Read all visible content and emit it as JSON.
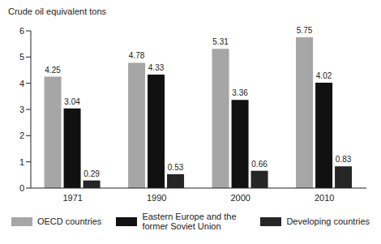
{
  "chart_data": {
    "type": "bar",
    "y_label": "Crude oil equivalent tons",
    "categories": [
      "1971",
      "1990",
      "2000",
      "2010"
    ],
    "series": [
      {
        "name": "OECD countries",
        "color": "#a6a6a6",
        "values": [
          4.25,
          4.78,
          5.31,
          5.75
        ]
      },
      {
        "name": "Eastern Europe and the former Soviet Union",
        "color": "#111111",
        "values": [
          3.04,
          4.33,
          3.36,
          4.02
        ]
      },
      {
        "name": "Developing countries",
        "color": "#262626",
        "values": [
          0.29,
          0.53,
          0.66,
          0.83
        ]
      }
    ],
    "ylim": [
      0,
      6
    ],
    "yticks": [
      0,
      1,
      2,
      3,
      4,
      5,
      6
    ],
    "grid": false,
    "legend": "bottom",
    "data_labels": true
  }
}
